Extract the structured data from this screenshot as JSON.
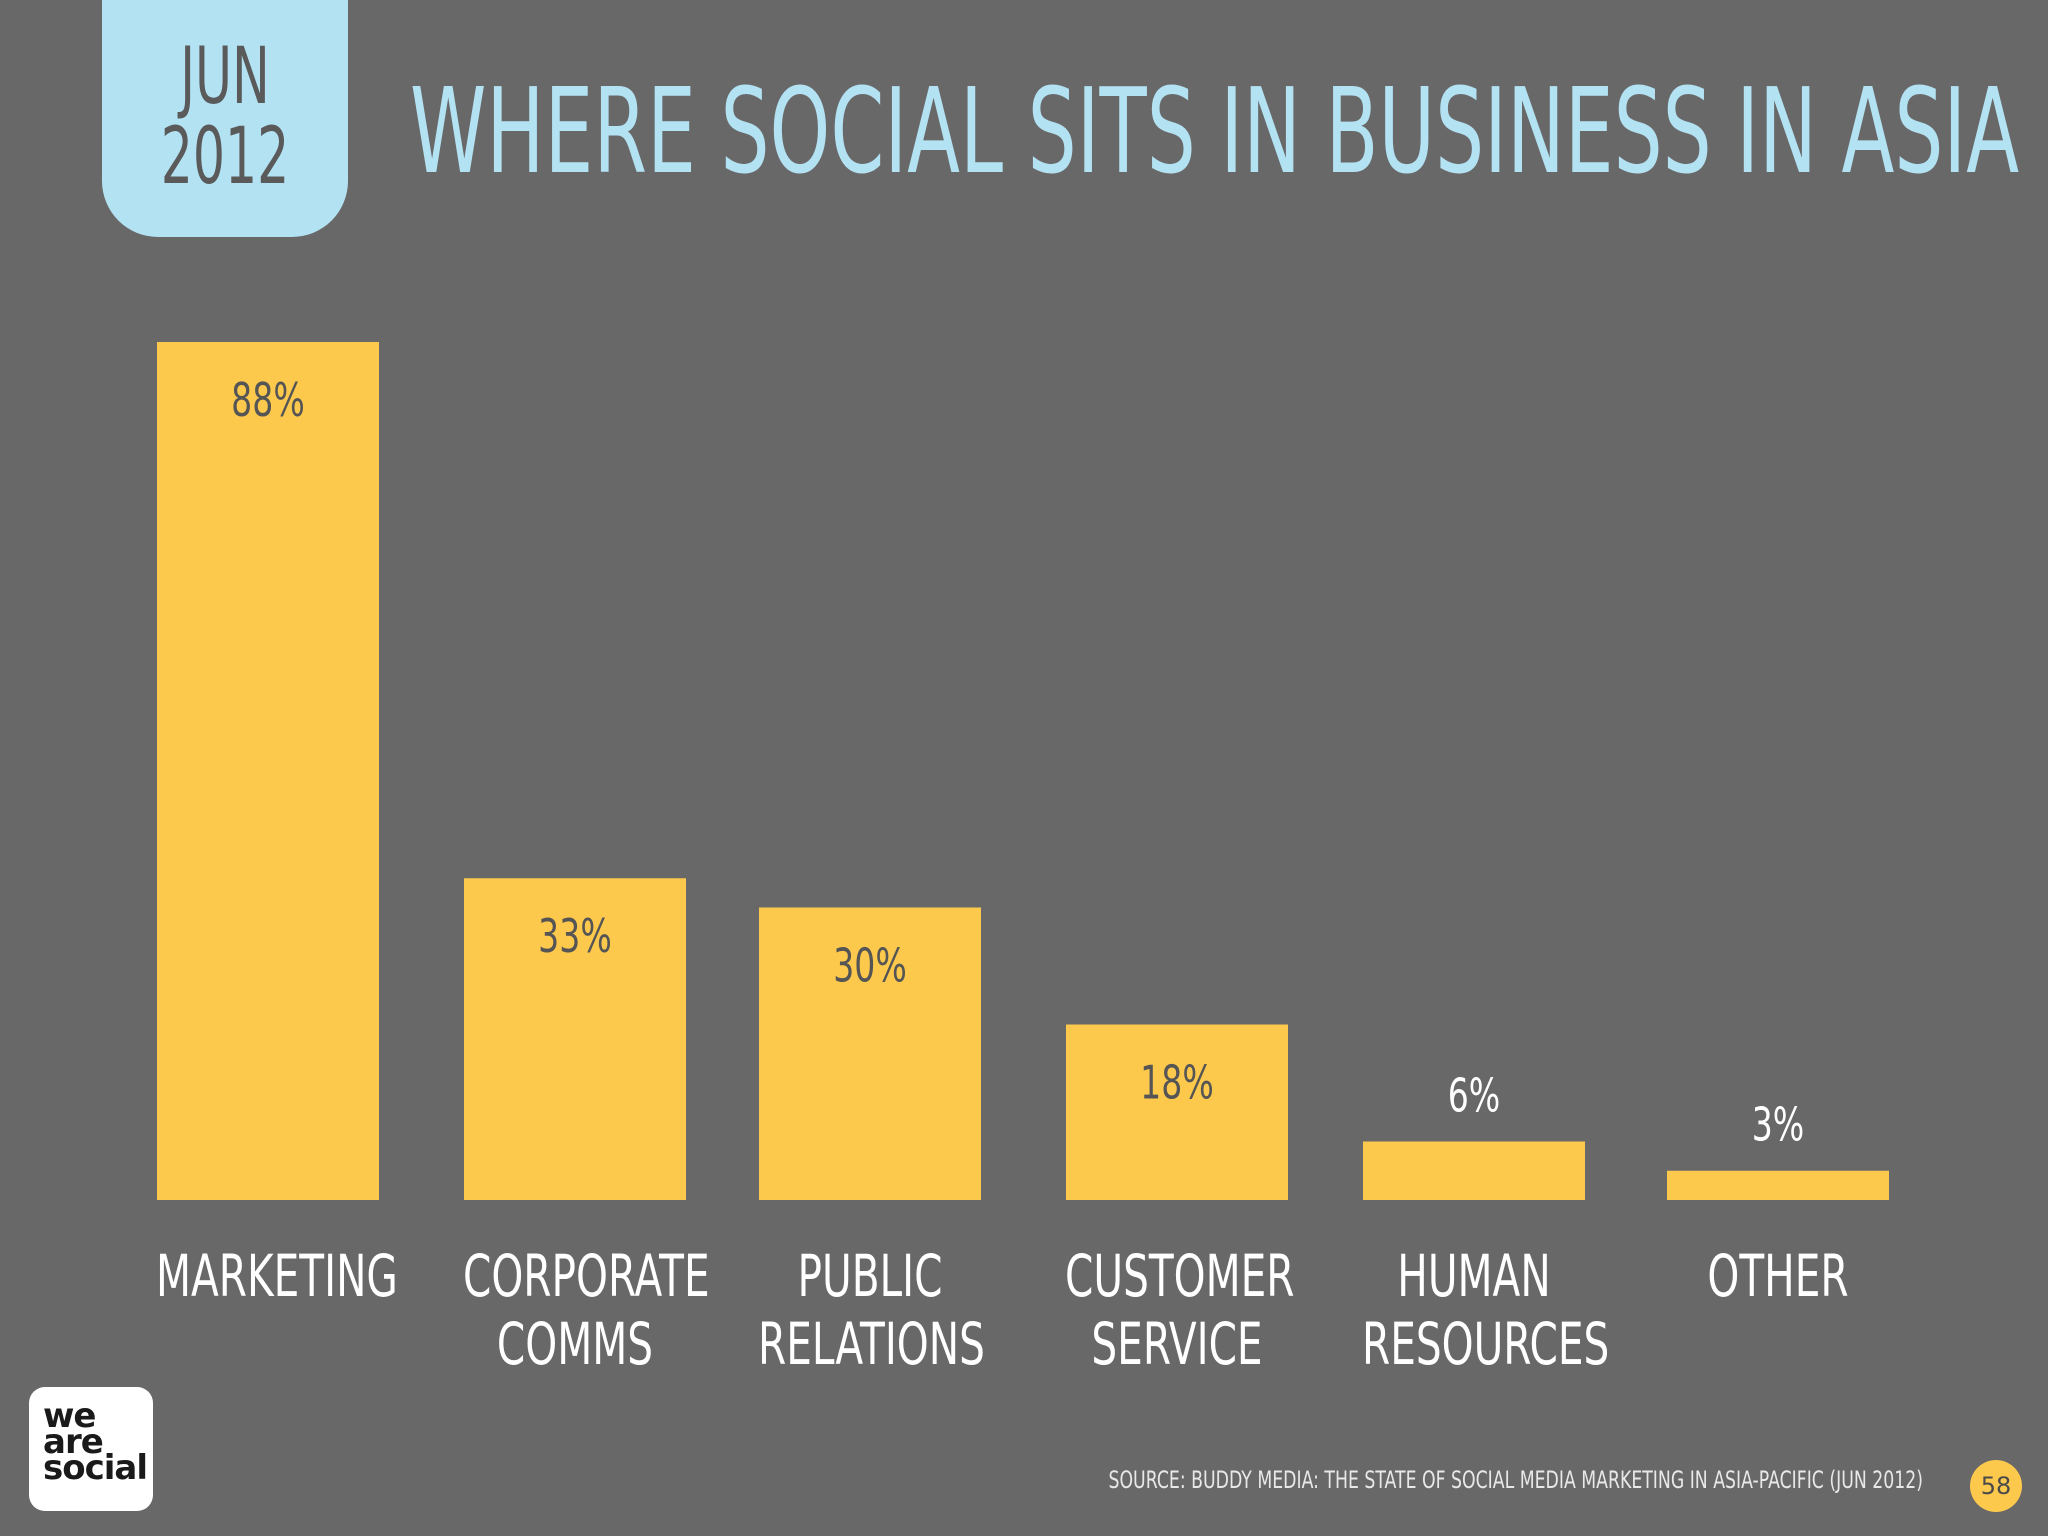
{
  "header": {
    "month": "JUN",
    "year": "2012",
    "title": "WHERE SOCIAL SITS IN BUSINESS IN ASIA"
  },
  "chart_data": {
    "type": "bar",
    "categories": [
      [
        "MARKETING"
      ],
      [
        "CORPORATE",
        "COMMS"
      ],
      [
        "PUBLIC",
        "RELATIONS"
      ],
      [
        "CUSTOMER",
        "SERVICE"
      ],
      [
        "HUMAN",
        "RESOURCES"
      ],
      [
        "OTHER"
      ]
    ],
    "values": [
      88,
      33,
      30,
      18,
      6,
      3
    ],
    "value_labels": [
      "88%",
      "33%",
      "30%",
      "18%",
      "6%",
      "3%"
    ],
    "unit": "%",
    "ylim": [
      0,
      100
    ],
    "bar_color": "#fcc94d",
    "grid": false,
    "legend": "none"
  },
  "footer": {
    "logo_lines": [
      "we",
      "are",
      "social"
    ],
    "source": "SOURCE: BUDDY MEDIA: THE STATE OF SOCIAL MEDIA MARKETING IN ASIA-PACIFIC (JUN 2012)",
    "page_number": "58"
  },
  "colors": {
    "background": "#696869",
    "accent": "#b3e2f2",
    "bar": "#fcc94d",
    "label_dark": "#555555"
  }
}
